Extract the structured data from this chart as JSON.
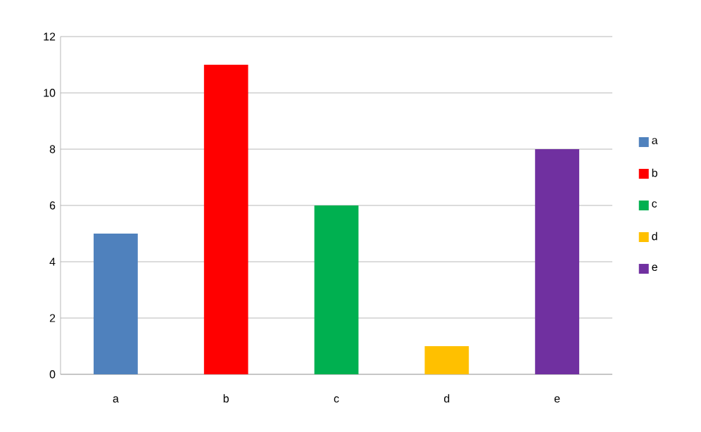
{
  "chart_data": {
    "type": "bar",
    "categories": [
      "a",
      "b",
      "c",
      "d",
      "e"
    ],
    "stacked": true,
    "series": [
      {
        "name": "a",
        "color": "#4f81bd",
        "values": [
          5,
          null,
          null,
          null,
          null
        ]
      },
      {
        "name": "b",
        "color": "#ff0000",
        "values": [
          null,
          11,
          null,
          null,
          null
        ]
      },
      {
        "name": "c",
        "color": "#00b050",
        "values": [
          null,
          null,
          6,
          null,
          null
        ]
      },
      {
        "name": "d",
        "color": "#ffc000",
        "values": [
          null,
          null,
          null,
          1,
          null
        ]
      },
      {
        "name": "e",
        "color": "#7030a0",
        "values": [
          null,
          null,
          null,
          null,
          8
        ]
      }
    ],
    "ylim": [
      0,
      12
    ],
    "yticks": [
      0,
      2,
      4,
      6,
      8,
      10,
      12
    ],
    "grid": "y",
    "legend": "right"
  }
}
